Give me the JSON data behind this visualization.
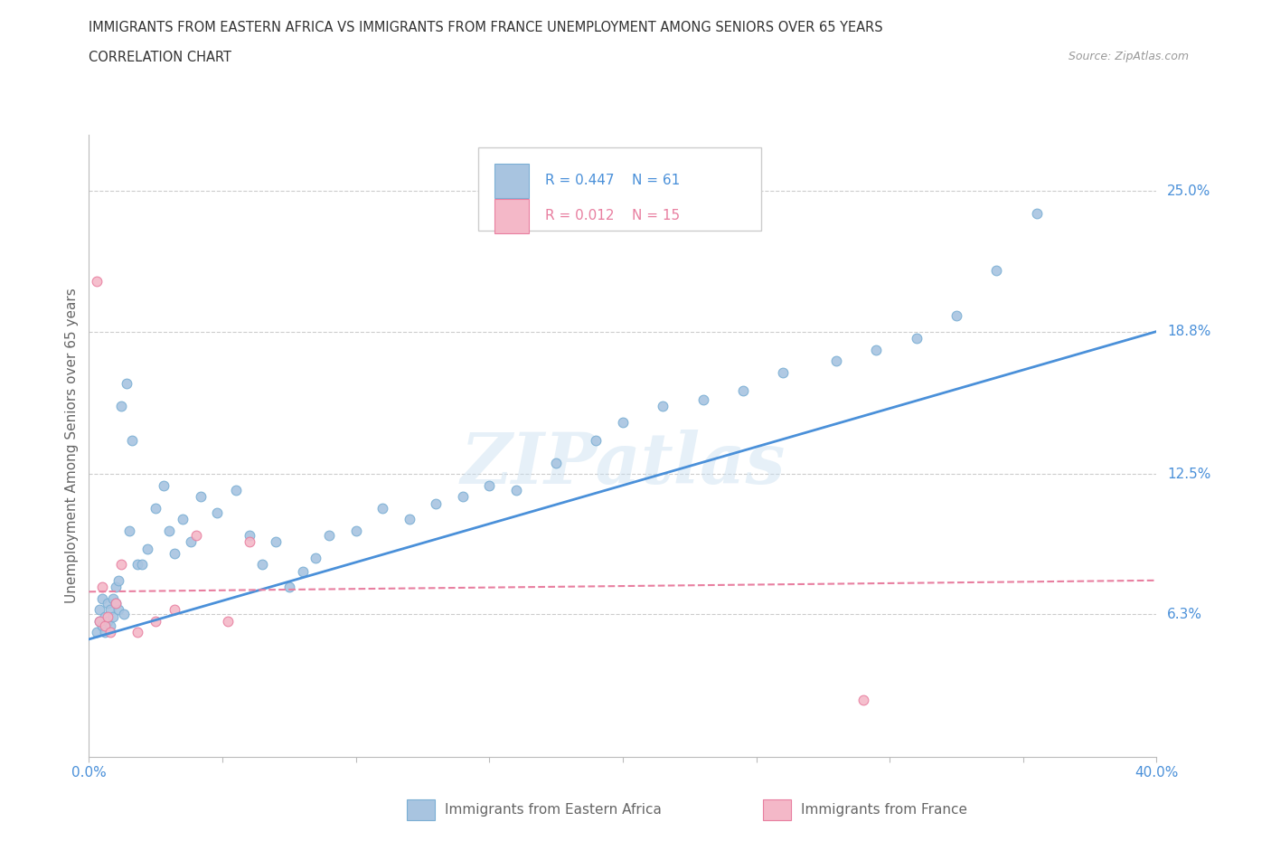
{
  "title_line1": "IMMIGRANTS FROM EASTERN AFRICA VS IMMIGRANTS FROM FRANCE UNEMPLOYMENT AMONG SENIORS OVER 65 YEARS",
  "title_line2": "CORRELATION CHART",
  "source_text": "Source: ZipAtlas.com",
  "ylabel": "Unemployment Among Seniors over 65 years",
  "xlim": [
    0.0,
    0.4
  ],
  "ylim": [
    0.0,
    0.275
  ],
  "yticks": [
    0.063,
    0.125,
    0.188,
    0.25
  ],
  "ytick_labels": [
    "6.3%",
    "12.5%",
    "18.8%",
    "25.0%"
  ],
  "xticks": [
    0.0,
    0.05,
    0.1,
    0.15,
    0.2,
    0.25,
    0.3,
    0.35,
    0.4
  ],
  "xtick_labels": [
    "0.0%",
    "",
    "",
    "",
    "",
    "",
    "",
    "",
    "40.0%"
  ],
  "blue_color": "#a8c4e0",
  "blue_edge_color": "#7bafd4",
  "pink_color": "#f4b8c8",
  "pink_edge_color": "#e87fa0",
  "blue_line_color": "#4a90d9",
  "pink_line_color": "#e87fa0",
  "legend_R_blue": "R = 0.447",
  "legend_N_blue": "N = 61",
  "legend_R_pink": "R = 0.012",
  "legend_N_pink": "N = 15",
  "watermark": "ZIPatlas",
  "blue_scatter_x": [
    0.003,
    0.004,
    0.004,
    0.005,
    0.005,
    0.006,
    0.006,
    0.007,
    0.007,
    0.008,
    0.008,
    0.009,
    0.009,
    0.01,
    0.01,
    0.011,
    0.011,
    0.012,
    0.013,
    0.014,
    0.015,
    0.016,
    0.018,
    0.02,
    0.022,
    0.025,
    0.028,
    0.03,
    0.032,
    0.035,
    0.038,
    0.042,
    0.048,
    0.055,
    0.06,
    0.065,
    0.07,
    0.075,
    0.08,
    0.085,
    0.09,
    0.1,
    0.11,
    0.12,
    0.13,
    0.14,
    0.15,
    0.16,
    0.175,
    0.19,
    0.2,
    0.215,
    0.23,
    0.245,
    0.26,
    0.28,
    0.295,
    0.31,
    0.325,
    0.34,
    0.355
  ],
  "blue_scatter_y": [
    0.055,
    0.06,
    0.065,
    0.058,
    0.07,
    0.055,
    0.062,
    0.06,
    0.068,
    0.058,
    0.065,
    0.062,
    0.07,
    0.068,
    0.075,
    0.065,
    0.078,
    0.155,
    0.063,
    0.165,
    0.1,
    0.14,
    0.085,
    0.085,
    0.092,
    0.11,
    0.12,
    0.1,
    0.09,
    0.105,
    0.095,
    0.115,
    0.108,
    0.118,
    0.098,
    0.085,
    0.095,
    0.075,
    0.082,
    0.088,
    0.098,
    0.1,
    0.11,
    0.105,
    0.112,
    0.115,
    0.12,
    0.118,
    0.13,
    0.14,
    0.148,
    0.155,
    0.158,
    0.162,
    0.17,
    0.175,
    0.18,
    0.185,
    0.195,
    0.215,
    0.24
  ],
  "pink_scatter_x": [
    0.003,
    0.004,
    0.005,
    0.006,
    0.007,
    0.008,
    0.01,
    0.012,
    0.018,
    0.025,
    0.032,
    0.04,
    0.052,
    0.06,
    0.29
  ],
  "pink_scatter_y": [
    0.21,
    0.06,
    0.075,
    0.058,
    0.062,
    0.055,
    0.068,
    0.085,
    0.055,
    0.06,
    0.065,
    0.098,
    0.06,
    0.095,
    0.025
  ],
  "blue_line_x": [
    0.0,
    0.4
  ],
  "blue_line_y_start": 0.052,
  "blue_line_y_end": 0.188,
  "pink_line_x": [
    0.0,
    0.4
  ],
  "pink_line_y_start": 0.073,
  "pink_line_y_end": 0.078,
  "grid_color": "#cccccc",
  "bg_color": "#ffffff",
  "title_color": "#333333",
  "axis_label_color": "#666666",
  "tick_label_color_blue": "#4a90d9",
  "tick_label_color_pink": "#e87fa0",
  "marker_size": 60
}
